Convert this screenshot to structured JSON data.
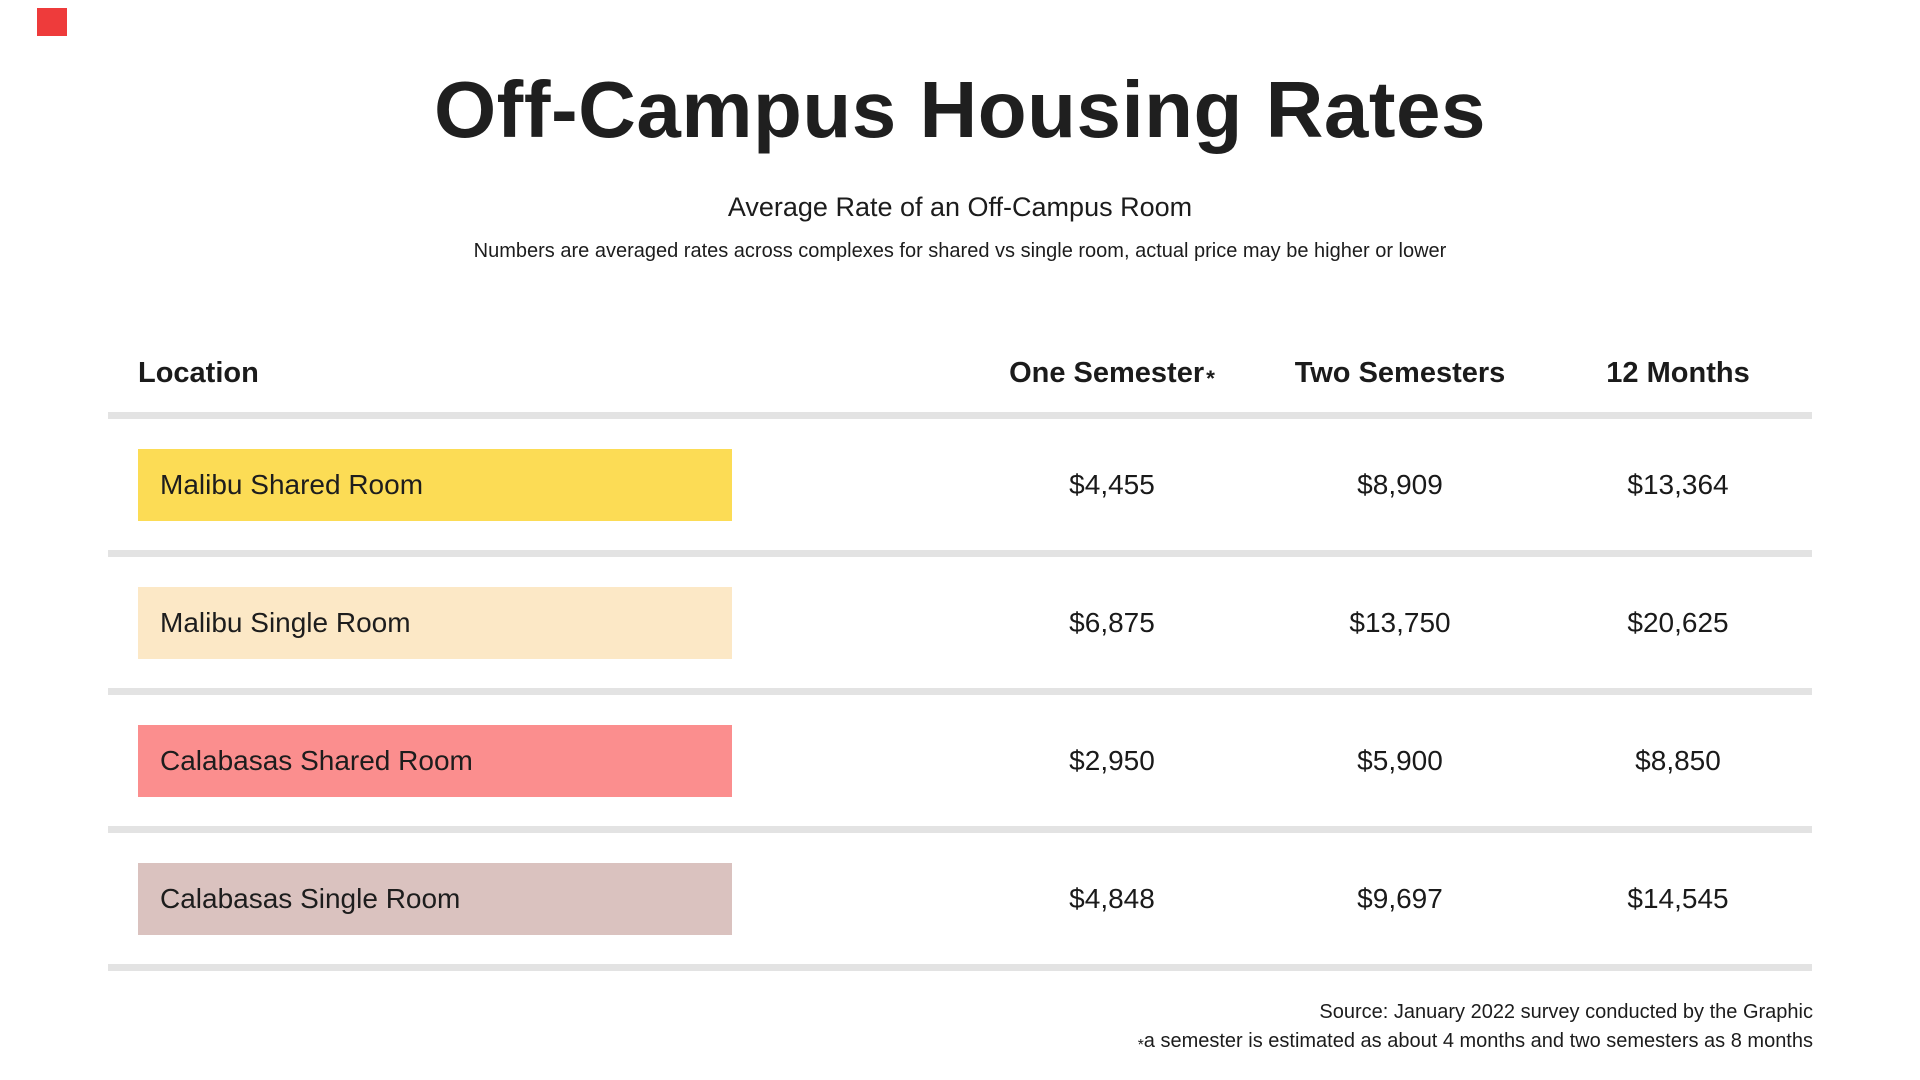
{
  "marker": {
    "color": "#ee3b3b"
  },
  "header": {
    "title": "Off-Campus Housing Rates",
    "subtitle": "Average Rate of an Off-Campus Room",
    "note": "Numbers are averaged rates across complexes for shared vs single room, actual price may be higher or lower"
  },
  "table": {
    "columns": {
      "location": "Location",
      "one_semester": "One Semester",
      "one_semester_asterisk": "*",
      "two_semesters": "Two Semesters",
      "twelve_months": "12 Months"
    },
    "rows": [
      {
        "location": "Malibu Shared Room",
        "color": "#fcdc55",
        "one_semester": "$4,455",
        "two_semesters": "$8,909",
        "twelve_months": "$13,364"
      },
      {
        "location": "Malibu Single Room",
        "color": "#fce8c6",
        "one_semester": "$6,875",
        "two_semesters": "$13,750",
        "twelve_months": "$20,625"
      },
      {
        "location": "Calabasas Shared Room",
        "color": "#fb8e8e",
        "one_semester": "$2,950",
        "two_semesters": "$5,900",
        "twelve_months": "$8,850"
      },
      {
        "location": "Calabasas Single Room",
        "color": "#dac2bf",
        "one_semester": "$4,848",
        "two_semesters": "$9,697",
        "twelve_months": "$14,545"
      }
    ]
  },
  "footer": {
    "source": "Source: January 2022 survey conducted by the Graphic",
    "footnote_asterisk": "*",
    "footnote": "a semester is estimated as about 4 months and two semesters as 8 months"
  },
  "colors": {
    "divider": "#e3e3e3",
    "highlight_yellow": "#fcdc55",
    "highlight_cream": "#fce8c6",
    "highlight_salmon": "#fb8e8e",
    "highlight_mauve": "#dac2bf",
    "marker_red": "#ee3b3b"
  },
  "chart_data": {
    "type": "table",
    "title": "Off-Campus Housing Rates",
    "subtitle": "Average Rate of an Off-Campus Room",
    "note": "Numbers are averaged rates across complexes for shared vs single room, actual price may be higher or lower",
    "columns": [
      "Location",
      "One Semester*",
      "Two Semesters",
      "12 Months"
    ],
    "rows": [
      [
        "Malibu Shared Room",
        4455,
        8909,
        13364
      ],
      [
        "Malibu Single Room",
        6875,
        13750,
        20625
      ],
      [
        "Calabasas Shared Room",
        2950,
        5900,
        8850
      ],
      [
        "Calabasas Single Room",
        4848,
        9697,
        14545
      ]
    ],
    "row_colors": [
      "#fcdc55",
      "#fce8c6",
      "#fb8e8e",
      "#dac2bf"
    ],
    "source": "Source: January 2022 survey conducted by the Graphic",
    "footnote": "*a semester is estimated as about 4 months and two semesters as 8 months"
  }
}
